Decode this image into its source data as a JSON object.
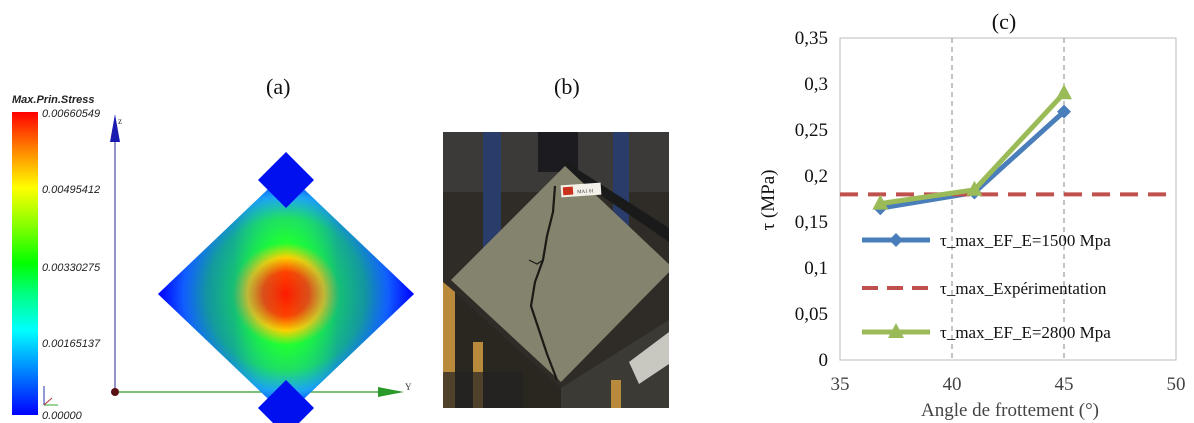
{
  "figure": {
    "panel_a": {
      "label": "(a)",
      "legend_title": "Max.Prin.Stress",
      "legend_values": [
        "0.00660549",
        "0.00495412",
        "0.00330275",
        "0.00165137",
        "0.00000"
      ],
      "axis_z": "z",
      "axis_y": "Y"
    },
    "panel_b": {
      "label": "(b)",
      "tag_text": "MA1 01"
    },
    "panel_c": {
      "label": "(c)"
    }
  },
  "chart_data": {
    "type": "line",
    "title": "(c)",
    "xlabel": "Angle de frottement (°)",
    "ylabel": "τ (MPa)",
    "xlim": [
      35,
      50
    ],
    "ylim": [
      0,
      0.35
    ],
    "x_ticks": [
      "35",
      "40",
      "45",
      "50"
    ],
    "y_ticks": [
      "0",
      "0,05",
      "0,1",
      "0,15",
      "0,2",
      "0,25",
      "0,3",
      "0,35"
    ],
    "vertical_gridlines_x": [
      40,
      45
    ],
    "legend_position": "bottom-right",
    "series": [
      {
        "name": "τ_max_EF_E=1500 Mpa",
        "color": "#4a7ebb",
        "marker": "diamond",
        "x": [
          36.8,
          41,
          45
        ],
        "y": [
          0.165,
          0.182,
          0.27
        ]
      },
      {
        "name": "τ_max_Expérimentation",
        "color": "#c0504d",
        "style": "dashed",
        "x": [
          35,
          50
        ],
        "y": [
          0.18,
          0.18
        ]
      },
      {
        "name": "τ_max_EF_E=2800 Mpa",
        "color": "#9bbb59",
        "marker": "triangle",
        "x": [
          36.8,
          41,
          45
        ],
        "y": [
          0.17,
          0.185,
          0.29
        ]
      }
    ]
  }
}
